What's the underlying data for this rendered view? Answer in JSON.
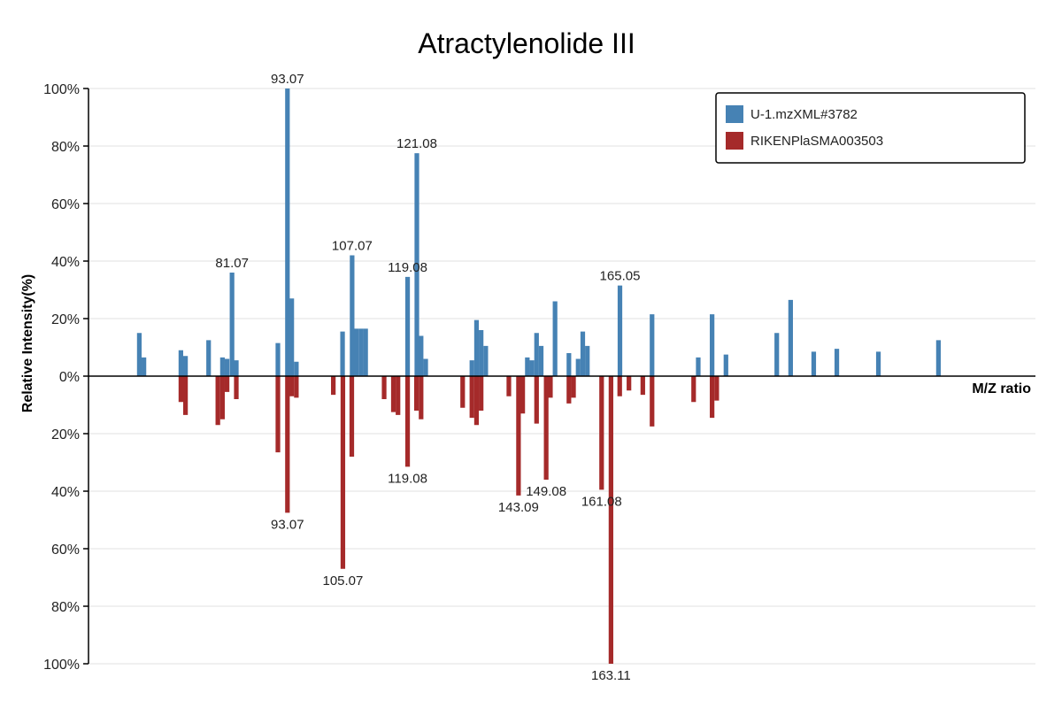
{
  "chart_data": {
    "type": "bar",
    "title": "Atractylenolide III",
    "xlabel": "M/Z ratio",
    "ylabel": "Relative Intensity(%)",
    "ylim": [
      -100,
      100
    ],
    "xlim": [
      50,
      255
    ],
    "yticks": [
      {
        "value": 100,
        "label": "100%"
      },
      {
        "value": 80,
        "label": "80%"
      },
      {
        "value": 60,
        "label": "60%"
      },
      {
        "value": 40,
        "label": "40%"
      },
      {
        "value": 20,
        "label": "20%"
      },
      {
        "value": 0,
        "label": "0%"
      },
      {
        "value": -20,
        "label": "20%"
      },
      {
        "value": -40,
        "label": "40%"
      },
      {
        "value": -60,
        "label": "60%"
      },
      {
        "value": -80,
        "label": "80%"
      },
      {
        "value": -100,
        "label": "100%"
      }
    ],
    "grid": true,
    "legend_position": "top-right",
    "colors": {
      "query": "#4682b4",
      "reference": "#a52a2a"
    },
    "series": [
      {
        "name": "U-1.mzXML#3782",
        "direction": "up",
        "points": [
          {
            "mz": 61.0,
            "intensity": 15
          },
          {
            "mz": 62.0,
            "intensity": 6.5
          },
          {
            "mz": 70.0,
            "intensity": 9
          },
          {
            "mz": 71.0,
            "intensity": 7
          },
          {
            "mz": 76.0,
            "intensity": 12.5
          },
          {
            "mz": 79.0,
            "intensity": 6.5
          },
          {
            "mz": 80.0,
            "intensity": 6
          },
          {
            "mz": 81.07,
            "intensity": 36,
            "label": "81.07"
          },
          {
            "mz": 82.0,
            "intensity": 5.5
          },
          {
            "mz": 91.0,
            "intensity": 11.5
          },
          {
            "mz": 93.07,
            "intensity": 100,
            "label": "93.07"
          },
          {
            "mz": 94.0,
            "intensity": 27
          },
          {
            "mz": 95.0,
            "intensity": 5
          },
          {
            "mz": 105.0,
            "intensity": 15.5
          },
          {
            "mz": 107.07,
            "intensity": 42,
            "label": "107.07"
          },
          {
            "mz": 108.0,
            "intensity": 16.5
          },
          {
            "mz": 109.0,
            "intensity": 16.5
          },
          {
            "mz": 110.0,
            "intensity": 16.5
          },
          {
            "mz": 119.08,
            "intensity": 34.5,
            "label": "119.08"
          },
          {
            "mz": 121.08,
            "intensity": 77.5,
            "label": "121.08"
          },
          {
            "mz": 122.0,
            "intensity": 14
          },
          {
            "mz": 123.0,
            "intensity": 6
          },
          {
            "mz": 133.0,
            "intensity": 5.5
          },
          {
            "mz": 134.0,
            "intensity": 19.5
          },
          {
            "mz": 135.0,
            "intensity": 16
          },
          {
            "mz": 136.0,
            "intensity": 10.5
          },
          {
            "mz": 145.0,
            "intensity": 6.5
          },
          {
            "mz": 146.0,
            "intensity": 5.5
          },
          {
            "mz": 147.0,
            "intensity": 15
          },
          {
            "mz": 148.0,
            "intensity": 10.5
          },
          {
            "mz": 151.0,
            "intensity": 26
          },
          {
            "mz": 154.0,
            "intensity": 8
          },
          {
            "mz": 156.0,
            "intensity": 6
          },
          {
            "mz": 157.0,
            "intensity": 15.5
          },
          {
            "mz": 158.0,
            "intensity": 10.5
          },
          {
            "mz": 165.05,
            "intensity": 31.5,
            "label": "165.05"
          },
          {
            "mz": 172.0,
            "intensity": 21.5
          },
          {
            "mz": 182.0,
            "intensity": 6.5
          },
          {
            "mz": 185.0,
            "intensity": 21.5
          },
          {
            "mz": 188.0,
            "intensity": 7.5
          },
          {
            "mz": 199.0,
            "intensity": 15
          },
          {
            "mz": 202.0,
            "intensity": 26.5
          },
          {
            "mz": 207.0,
            "intensity": 8.5
          },
          {
            "mz": 212.0,
            "intensity": 9.5
          },
          {
            "mz": 221.0,
            "intensity": 8.5
          },
          {
            "mz": 234.0,
            "intensity": 12.5
          }
        ]
      },
      {
        "name": "RIKENPlaSMA003503",
        "direction": "down",
        "points": [
          {
            "mz": 70.0,
            "intensity": 9
          },
          {
            "mz": 71.0,
            "intensity": 13.5
          },
          {
            "mz": 78.0,
            "intensity": 17
          },
          {
            "mz": 79.0,
            "intensity": 15
          },
          {
            "mz": 80.0,
            "intensity": 5.5
          },
          {
            "mz": 82.0,
            "intensity": 8
          },
          {
            "mz": 91.0,
            "intensity": 26.5
          },
          {
            "mz": 93.07,
            "intensity": 47.5,
            "label": "93.07"
          },
          {
            "mz": 94.0,
            "intensity": 7
          },
          {
            "mz": 95.0,
            "intensity": 7.5
          },
          {
            "mz": 103.0,
            "intensity": 6.5
          },
          {
            "mz": 105.07,
            "intensity": 67,
            "label": "105.07"
          },
          {
            "mz": 107.0,
            "intensity": 28
          },
          {
            "mz": 114.0,
            "intensity": 8
          },
          {
            "mz": 116.0,
            "intensity": 12.5
          },
          {
            "mz": 117.0,
            "intensity": 13.5
          },
          {
            "mz": 119.08,
            "intensity": 31.5,
            "label": "119.08"
          },
          {
            "mz": 121.0,
            "intensity": 12
          },
          {
            "mz": 122.0,
            "intensity": 15
          },
          {
            "mz": 131.0,
            "intensity": 11
          },
          {
            "mz": 133.0,
            "intensity": 14.5
          },
          {
            "mz": 134.0,
            "intensity": 17
          },
          {
            "mz": 135.0,
            "intensity": 12
          },
          {
            "mz": 141.0,
            "intensity": 7
          },
          {
            "mz": 143.09,
            "intensity": 41.5,
            "label": "143.09"
          },
          {
            "mz": 144.0,
            "intensity": 13
          },
          {
            "mz": 147.0,
            "intensity": 16.5
          },
          {
            "mz": 149.08,
            "intensity": 36,
            "label": "149.08"
          },
          {
            "mz": 150.0,
            "intensity": 7.5
          },
          {
            "mz": 154.0,
            "intensity": 9.5
          },
          {
            "mz": 155.0,
            "intensity": 7.5
          },
          {
            "mz": 161.08,
            "intensity": 39.5,
            "label": "161.08"
          },
          {
            "mz": 163.11,
            "intensity": 100,
            "label": "163.11"
          },
          {
            "mz": 165.0,
            "intensity": 7
          },
          {
            "mz": 167.0,
            "intensity": 5
          },
          {
            "mz": 170.0,
            "intensity": 6.5
          },
          {
            "mz": 172.0,
            "intensity": 17.5
          },
          {
            "mz": 181.0,
            "intensity": 9
          },
          {
            "mz": 185.0,
            "intensity": 14.5
          },
          {
            "mz": 186.0,
            "intensity": 8.5
          }
        ]
      }
    ]
  }
}
